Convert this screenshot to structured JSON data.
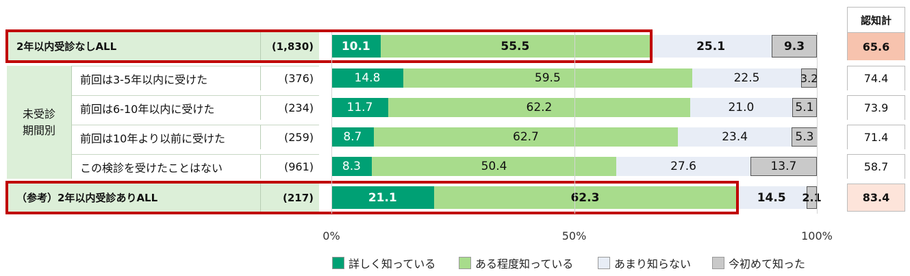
{
  "chart_data": {
    "type": "bar",
    "stacked": true,
    "orientation": "horizontal",
    "xlim": [
      0,
      100
    ],
    "x_ticks": [
      "0%",
      "50%",
      "100%"
    ],
    "group_label": "未受診\n期間別",
    "awareness_header": "認知計",
    "rows": [
      {
        "label": "2年以内受診なしALL",
        "n": "(1,830)",
        "values": [
          10.1,
          55.5,
          25.1,
          9.3
        ],
        "labels": [
          "10.1",
          "55.5",
          "25.1",
          "9.3"
        ],
        "awareness": "65.6",
        "highlight": true,
        "bold": true
      },
      {
        "label": "前回は3-5年以内に受けた",
        "n": "(376)",
        "values": [
          14.8,
          59.5,
          22.5,
          3.2
        ],
        "labels": [
          "14.8",
          "59.5",
          "22.5",
          "3.2"
        ],
        "awareness": "74.4",
        "highlight": false,
        "bold": false
      },
      {
        "label": "前回は6-10年以内に受けた",
        "n": "(234)",
        "values": [
          11.7,
          62.2,
          21.0,
          5.1
        ],
        "labels": [
          "11.7",
          "62.2",
          "21.0",
          "5.1"
        ],
        "awareness": "73.9",
        "highlight": false,
        "bold": false
      },
      {
        "label": "前回は10年より以前に受けた",
        "n": "(259)",
        "values": [
          8.7,
          62.7,
          23.4,
          5.3
        ],
        "labels": [
          "8.7",
          "62.7",
          "23.4",
          "5.3"
        ],
        "awareness": "71.4",
        "highlight": false,
        "bold": false
      },
      {
        "label": "この検診を受けたことはない",
        "n": "(961)",
        "values": [
          8.3,
          50.4,
          27.6,
          13.7
        ],
        "labels": [
          "8.3",
          "50.4",
          "27.6",
          "13.7"
        ],
        "awareness": "58.7",
        "highlight": false,
        "bold": false
      },
      {
        "label": "（参考）2年以内受診ありALL",
        "n": "(217)",
        "values": [
          21.1,
          62.3,
          14.5,
          2.1
        ],
        "labels": [
          "21.1",
          "62.3",
          "14.5",
          "2.1"
        ],
        "awareness": "83.4",
        "highlight": true,
        "bold": true
      }
    ],
    "series": [
      {
        "name": "詳しく知っている",
        "color": "#00a074"
      },
      {
        "name": "ある程度知っている",
        "color": "#a8dc8c"
      },
      {
        "name": "あまり知らない",
        "color": "#e8edf6"
      },
      {
        "name": "今初めて知った",
        "color": "#c9c9c9"
      }
    ],
    "awareness_colors": [
      "#f7c3ae",
      "#ffffff",
      "#ffffff",
      "#ffffff",
      "#ffffff",
      "#fde4da"
    ]
  }
}
